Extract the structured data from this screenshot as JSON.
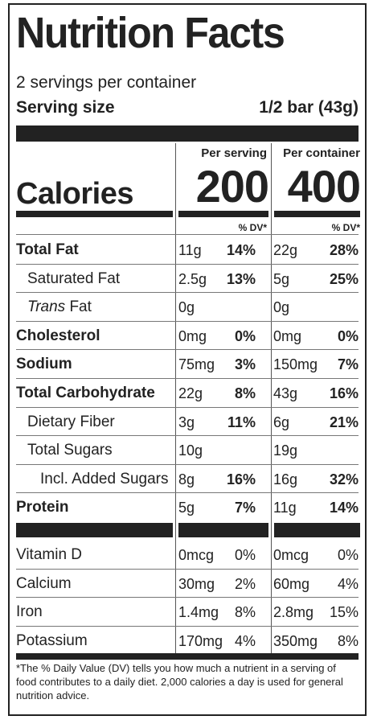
{
  "title": "Nutrition Facts",
  "servings": "2 servings per container",
  "serving_size": {
    "label": "Serving size",
    "value": "1/2 bar (43g)"
  },
  "calories": {
    "label": "Calories",
    "per_serving_header": "Per serving",
    "per_container_header": "Per container",
    "per_serving": "200",
    "per_container": "400"
  },
  "dv_header": "% DV*",
  "nutrients": [
    {
      "name": "Total Fat",
      "bold": true,
      "serving_amt": "11g",
      "serving_dv": "14%",
      "container_amt": "22g",
      "container_dv": "28%"
    },
    {
      "name": "Saturated Fat",
      "bold": false,
      "serving_amt": "2.5g",
      "serving_dv": "13%",
      "container_amt": "5g",
      "container_dv": "25%"
    },
    {
      "name_italic": "Trans",
      "name": " Fat",
      "bold": false,
      "serving_amt": "0g",
      "serving_dv": "",
      "container_amt": "0g",
      "container_dv": ""
    },
    {
      "name": "Cholesterol",
      "bold": true,
      "serving_amt": "0mg",
      "serving_dv": "0%",
      "container_amt": "0mg",
      "container_dv": "0%"
    },
    {
      "name": "Sodium",
      "bold": true,
      "serving_amt": "75mg",
      "serving_dv": "3%",
      "container_amt": "150mg",
      "container_dv": "7%"
    },
    {
      "name": "Total Carbohydrate",
      "bold": true,
      "serving_amt": "22g",
      "serving_dv": "8%",
      "container_amt": "43g",
      "container_dv": "16%"
    },
    {
      "name": "Dietary Fiber",
      "bold": false,
      "serving_amt": "3g",
      "serving_dv": "11%",
      "container_amt": "6g",
      "container_dv": "21%"
    },
    {
      "name": "Total Sugars",
      "bold": false,
      "serving_amt": "10g",
      "serving_dv": "",
      "container_amt": "19g",
      "container_dv": ""
    },
    {
      "name": "Incl. Added Sugars",
      "bold": false,
      "serving_amt": "8g",
      "serving_dv": "16%",
      "container_amt": "16g",
      "container_dv": "32%"
    },
    {
      "name": "Protein",
      "bold": true,
      "serving_amt": "5g",
      "serving_dv": "7%",
      "container_amt": "11g",
      "container_dv": "14%"
    }
  ],
  "vitamins": [
    {
      "name": "Vitamin D",
      "serving_amt": "0mcg",
      "serving_dv": "0%",
      "container_amt": "0mcg",
      "container_dv": "0%"
    },
    {
      "name": "Calcium",
      "serving_amt": "30mg",
      "serving_dv": "2%",
      "container_amt": "60mg",
      "container_dv": "4%"
    },
    {
      "name": "Iron",
      "serving_amt": "1.4mg",
      "serving_dv": "8%",
      "container_amt": "2.8mg",
      "container_dv": "15%"
    },
    {
      "name": "Potassium",
      "serving_amt": "170mg",
      "serving_dv": "4%",
      "container_amt": "350mg",
      "container_dv": "8%"
    }
  ],
  "footnote": "*The % Daily Value (DV) tells you how much a nutrient in a serving of food contributes to a daily diet. 2,000 calories a day is used for general nutrition advice."
}
